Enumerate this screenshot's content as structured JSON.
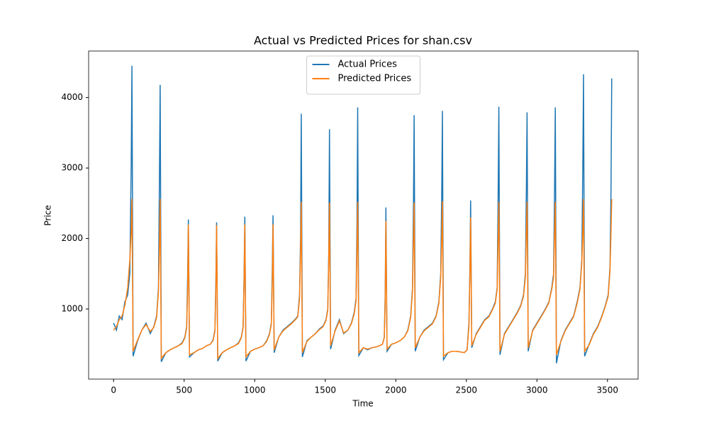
{
  "chart_data": {
    "type": "line",
    "title": "Actual vs Predicted Prices for shan.csv",
    "x_label": "Time",
    "y_label": "Price",
    "x": [
      0,
      20,
      40,
      60,
      80,
      100,
      115,
      125,
      130,
      138,
      170,
      200,
      230,
      260,
      285,
      305,
      318,
      325,
      330,
      338,
      370,
      400,
      430,
      460,
      485,
      505,
      518,
      525,
      530,
      538,
      570,
      600,
      630,
      660,
      685,
      705,
      718,
      725,
      730,
      738,
      770,
      800,
      830,
      860,
      885,
      905,
      918,
      925,
      930,
      938,
      970,
      1000,
      1030,
      1060,
      1085,
      1105,
      1118,
      1125,
      1130,
      1138,
      1170,
      1200,
      1230,
      1260,
      1285,
      1305,
      1318,
      1325,
      1330,
      1338,
      1370,
      1400,
      1430,
      1460,
      1485,
      1505,
      1518,
      1525,
      1530,
      1538,
      1570,
      1600,
      1630,
      1660,
      1685,
      1705,
      1718,
      1725,
      1730,
      1738,
      1770,
      1800,
      1830,
      1860,
      1885,
      1905,
      1918,
      1925,
      1930,
      1938,
      1970,
      2000,
      2030,
      2060,
      2085,
      2105,
      2118,
      2125,
      2130,
      2138,
      2170,
      2200,
      2230,
      2260,
      2285,
      2305,
      2318,
      2325,
      2330,
      2338,
      2370,
      2400,
      2430,
      2460,
      2485,
      2505,
      2518,
      2525,
      2530,
      2538,
      2570,
      2600,
      2630,
      2660,
      2685,
      2705,
      2718,
      2725,
      2730,
      2738,
      2770,
      2800,
      2830,
      2860,
      2885,
      2905,
      2918,
      2925,
      2930,
      2938,
      2970,
      3000,
      3030,
      3060,
      3085,
      3105,
      3118,
      3125,
      3130,
      3138,
      3170,
      3200,
      3230,
      3260,
      3285,
      3305,
      3318,
      3325,
      3330,
      3338,
      3370,
      3400,
      3430,
      3460,
      3485,
      3505,
      3518,
      3525,
      3530
    ],
    "series": [
      {
        "name": "Actual Prices",
        "color": "#1f77b4",
        "values": [
          800,
          700,
          900,
          850,
          1100,
          1200,
          1500,
          3100,
          4450,
          330,
          550,
          700,
          800,
          650,
          750,
          900,
          1300,
          2900,
          4180,
          250,
          380,
          420,
          450,
          480,
          520,
          600,
          750,
          1500,
          2270,
          320,
          380,
          420,
          440,
          480,
          500,
          560,
          700,
          1400,
          2230,
          260,
          380,
          420,
          450,
          480,
          520,
          600,
          750,
          1500,
          2310,
          260,
          400,
          430,
          450,
          480,
          550,
          650,
          800,
          1600,
          2330,
          380,
          600,
          700,
          750,
          800,
          850,
          900,
          1200,
          2000,
          3770,
          320,
          550,
          600,
          650,
          720,
          760,
          850,
          1000,
          1800,
          3550,
          430,
          700,
          850,
          650,
          700,
          800,
          950,
          1150,
          2200,
          3860,
          340,
          450,
          420,
          450,
          460,
          480,
          500,
          600,
          1200,
          2440,
          400,
          500,
          520,
          550,
          600,
          700,
          900,
          1300,
          2500,
          3750,
          400,
          600,
          700,
          750,
          800,
          900,
          1100,
          1500,
          2600,
          3810,
          280,
          380,
          400,
          400,
          390,
          380,
          420,
          800,
          1600,
          2540,
          450,
          650,
          750,
          850,
          900,
          1000,
          1100,
          1300,
          2600,
          3870,
          350,
          650,
          750,
          850,
          950,
          1050,
          1200,
          1500,
          2700,
          3790,
          400,
          700,
          800,
          900,
          1000,
          1100,
          1300,
          1500,
          2700,
          3860,
          230,
          550,
          700,
          800,
          900,
          1100,
          1300,
          1700,
          3000,
          4330,
          330,
          500,
          650,
          750,
          900,
          1050,
          1200,
          1600,
          2700,
          4270
        ]
      },
      {
        "name": "Predicted Prices",
        "color": "#ff7f0e",
        "values": [
          700,
          750,
          850,
          900,
          1050,
          1300,
          1700,
          2100,
          2560,
          400,
          560,
          700,
          780,
          680,
          740,
          880,
          1250,
          1900,
          2560,
          300,
          380,
          420,
          450,
          480,
          510,
          590,
          730,
          1300,
          2200,
          350,
          380,
          420,
          440,
          480,
          500,
          550,
          680,
          1300,
          2190,
          300,
          380,
          420,
          450,
          480,
          510,
          590,
          740,
          1400,
          2200,
          320,
          400,
          430,
          450,
          480,
          540,
          640,
          780,
          1400,
          2200,
          420,
          600,
          690,
          740,
          790,
          840,
          890,
          1150,
          1800,
          2520,
          380,
          540,
          600,
          650,
          710,
          750,
          840,
          980,
          1700,
          2510,
          480,
          690,
          830,
          660,
          700,
          790,
          930,
          1120,
          1900,
          2520,
          380,
          450,
          430,
          450,
          460,
          480,
          500,
          590,
          1100,
          2250,
          430,
          500,
          520,
          550,
          600,
          690,
          880,
          1250,
          2000,
          2510,
          450,
          600,
          690,
          740,
          790,
          890,
          1080,
          1450,
          2000,
          2530,
          330,
          380,
          400,
          400,
          390,
          380,
          420,
          750,
          1500,
          2300,
          480,
          640,
          740,
          840,
          890,
          990,
          1080,
          1280,
          2000,
          2520,
          400,
          640,
          740,
          840,
          940,
          1040,
          1180,
          1450,
          2100,
          2520,
          450,
          690,
          790,
          890,
          990,
          1090,
          1280,
          1450,
          2100,
          2520,
          350,
          540,
          690,
          790,
          890,
          1080,
          1280,
          1650,
          2100,
          2560,
          400,
          490,
          640,
          740,
          890,
          1040,
          1180,
          1550,
          2100,
          2560
        ]
      }
    ],
    "xlim": [
      -177,
      3717
    ],
    "ylim": [
      5,
      4660
    ],
    "xticks": [
      0,
      500,
      1000,
      1500,
      2000,
      2500,
      3000,
      3500
    ],
    "yticks": [
      1000,
      2000,
      3000,
      4000
    ],
    "legend": "upper center"
  }
}
